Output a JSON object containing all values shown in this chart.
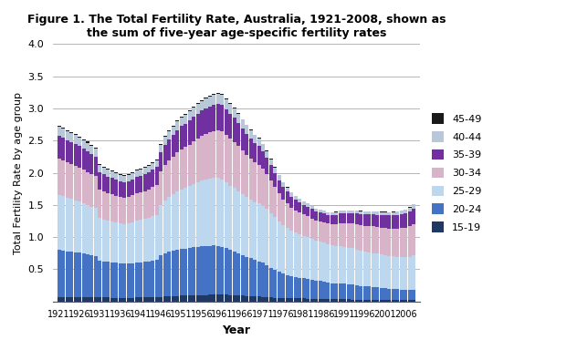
{
  "title": "Figure 1. The Total Fertility Rate, Australia, 1921-2008, shown as\nthe sum of five-year age-specific fertility rates",
  "xlabel": "Year",
  "ylabel": "Total Fertility Rate by age group",
  "years": [
    1921,
    1922,
    1923,
    1924,
    1925,
    1926,
    1927,
    1928,
    1929,
    1930,
    1931,
    1932,
    1933,
    1934,
    1935,
    1936,
    1937,
    1938,
    1939,
    1940,
    1941,
    1942,
    1943,
    1944,
    1945,
    1946,
    1947,
    1948,
    1949,
    1950,
    1951,
    1952,
    1953,
    1954,
    1955,
    1956,
    1957,
    1958,
    1959,
    1960,
    1961,
    1962,
    1963,
    1964,
    1965,
    1966,
    1967,
    1968,
    1969,
    1970,
    1971,
    1972,
    1973,
    1974,
    1975,
    1976,
    1977,
    1978,
    1979,
    1980,
    1981,
    1982,
    1983,
    1984,
    1985,
    1986,
    1987,
    1988,
    1989,
    1990,
    1991,
    1992,
    1993,
    1994,
    1995,
    1996,
    1997,
    1998,
    1999,
    2000,
    2001,
    2002,
    2003,
    2004,
    2005,
    2006,
    2007,
    2008
  ],
  "age_groups": [
    "15-19",
    "20-24",
    "25-29",
    "30-34",
    "35-39",
    "40-44",
    "45-49"
  ],
  "colors": [
    "#1f3864",
    "#4472c4",
    "#bdd7ee",
    "#d8b4c8",
    "#7030a0",
    "#b8c8d8",
    "#1a1a1a"
  ],
  "data": {
    "15-19": [
      0.073,
      0.073,
      0.072,
      0.071,
      0.07,
      0.069,
      0.068,
      0.067,
      0.066,
      0.065,
      0.062,
      0.061,
      0.06,
      0.059,
      0.058,
      0.057,
      0.057,
      0.057,
      0.058,
      0.06,
      0.062,
      0.063,
      0.064,
      0.066,
      0.067,
      0.073,
      0.078,
      0.082,
      0.085,
      0.088,
      0.09,
      0.093,
      0.095,
      0.097,
      0.099,
      0.101,
      0.102,
      0.104,
      0.106,
      0.108,
      0.106,
      0.103,
      0.099,
      0.096,
      0.093,
      0.09,
      0.087,
      0.083,
      0.079,
      0.075,
      0.071,
      0.066,
      0.062,
      0.059,
      0.057,
      0.055,
      0.053,
      0.051,
      0.049,
      0.047,
      0.046,
      0.044,
      0.042,
      0.04,
      0.038,
      0.036,
      0.034,
      0.033,
      0.033,
      0.033,
      0.033,
      0.032,
      0.031,
      0.03,
      0.029,
      0.028,
      0.027,
      0.026,
      0.025,
      0.024,
      0.023,
      0.022,
      0.022,
      0.021,
      0.02,
      0.019,
      0.019,
      0.019
    ],
    "20-24": [
      0.73,
      0.72,
      0.71,
      0.705,
      0.695,
      0.685,
      0.675,
      0.665,
      0.655,
      0.645,
      0.57,
      0.56,
      0.553,
      0.547,
      0.542,
      0.535,
      0.53,
      0.535,
      0.54,
      0.548,
      0.55,
      0.555,
      0.562,
      0.568,
      0.578,
      0.65,
      0.675,
      0.688,
      0.7,
      0.715,
      0.725,
      0.73,
      0.735,
      0.742,
      0.748,
      0.755,
      0.758,
      0.76,
      0.762,
      0.758,
      0.745,
      0.722,
      0.7,
      0.678,
      0.655,
      0.632,
      0.61,
      0.588,
      0.565,
      0.55,
      0.528,
      0.496,
      0.463,
      0.431,
      0.403,
      0.377,
      0.36,
      0.344,
      0.333,
      0.322,
      0.312,
      0.307,
      0.296,
      0.285,
      0.279,
      0.273,
      0.263,
      0.253,
      0.248,
      0.248,
      0.243,
      0.238,
      0.233,
      0.223,
      0.213,
      0.207,
      0.203,
      0.198,
      0.193,
      0.188,
      0.183,
      0.178,
      0.173,
      0.168,
      0.163,
      0.158,
      0.158,
      0.163
    ],
    "25-29": [
      0.85,
      0.84,
      0.828,
      0.82,
      0.808,
      0.798,
      0.785,
      0.77,
      0.755,
      0.74,
      0.665,
      0.655,
      0.643,
      0.635,
      0.628,
      0.62,
      0.618,
      0.625,
      0.635,
      0.648,
      0.655,
      0.663,
      0.675,
      0.688,
      0.7,
      0.778,
      0.82,
      0.85,
      0.878,
      0.905,
      0.928,
      0.942,
      0.958,
      0.978,
      0.998,
      1.018,
      1.03,
      1.042,
      1.048,
      1.055,
      1.045,
      1.022,
      1.0,
      0.988,
      0.968,
      0.945,
      0.922,
      0.91,
      0.898,
      0.895,
      0.89,
      0.875,
      0.852,
      0.818,
      0.785,
      0.75,
      0.728,
      0.705,
      0.688,
      0.675,
      0.663,
      0.65,
      0.638,
      0.625,
      0.618,
      0.608,
      0.595,
      0.583,
      0.582,
      0.582,
      0.575,
      0.568,
      0.562,
      0.555,
      0.548,
      0.542,
      0.535,
      0.528,
      0.522,
      0.515,
      0.51,
      0.505,
      0.505,
      0.505,
      0.505,
      0.51,
      0.518,
      0.53
    ],
    "30-34": [
      0.56,
      0.555,
      0.548,
      0.542,
      0.535,
      0.528,
      0.52,
      0.512,
      0.505,
      0.495,
      0.44,
      0.433,
      0.425,
      0.42,
      0.415,
      0.408,
      0.405,
      0.408,
      0.415,
      0.423,
      0.428,
      0.435,
      0.443,
      0.455,
      0.468,
      0.515,
      0.545,
      0.565,
      0.585,
      0.605,
      0.622,
      0.635,
      0.65,
      0.668,
      0.682,
      0.695,
      0.708,
      0.722,
      0.735,
      0.742,
      0.748,
      0.74,
      0.728,
      0.715,
      0.698,
      0.678,
      0.66,
      0.64,
      0.622,
      0.605,
      0.575,
      0.54,
      0.505,
      0.468,
      0.435,
      0.405,
      0.382,
      0.36,
      0.345,
      0.335,
      0.328,
      0.322,
      0.315,
      0.308,
      0.308,
      0.312,
      0.318,
      0.33,
      0.342,
      0.355,
      0.368,
      0.375,
      0.382,
      0.39,
      0.395,
      0.4,
      0.408,
      0.413,
      0.418,
      0.423,
      0.428,
      0.43,
      0.435,
      0.442,
      0.45,
      0.462,
      0.475,
      0.492
    ],
    "35-39": [
      0.355,
      0.352,
      0.348,
      0.343,
      0.338,
      0.333,
      0.328,
      0.322,
      0.315,
      0.308,
      0.272,
      0.267,
      0.262,
      0.257,
      0.252,
      0.248,
      0.245,
      0.245,
      0.248,
      0.252,
      0.255,
      0.258,
      0.262,
      0.268,
      0.275,
      0.298,
      0.315,
      0.328,
      0.338,
      0.348,
      0.358,
      0.365,
      0.372,
      0.38,
      0.388,
      0.395,
      0.4,
      0.405,
      0.41,
      0.412,
      0.408,
      0.398,
      0.388,
      0.375,
      0.36,
      0.345,
      0.33,
      0.315,
      0.302,
      0.29,
      0.272,
      0.255,
      0.238,
      0.22,
      0.205,
      0.192,
      0.182,
      0.172,
      0.163,
      0.157,
      0.152,
      0.147,
      0.143,
      0.14,
      0.138,
      0.137,
      0.137,
      0.14,
      0.143,
      0.148,
      0.152,
      0.157,
      0.162,
      0.167,
      0.172,
      0.177,
      0.181,
      0.185,
      0.189,
      0.193,
      0.197,
      0.201,
      0.205,
      0.21,
      0.215,
      0.222,
      0.23,
      0.24
    ],
    "40-44": [
      0.145,
      0.143,
      0.141,
      0.139,
      0.137,
      0.135,
      0.132,
      0.13,
      0.127,
      0.124,
      0.11,
      0.108,
      0.106,
      0.104,
      0.102,
      0.1,
      0.099,
      0.099,
      0.1,
      0.102,
      0.103,
      0.104,
      0.105,
      0.107,
      0.109,
      0.118,
      0.123,
      0.127,
      0.131,
      0.135,
      0.138,
      0.14,
      0.142,
      0.145,
      0.148,
      0.15,
      0.152,
      0.154,
      0.155,
      0.156,
      0.155,
      0.152,
      0.148,
      0.143,
      0.138,
      0.132,
      0.128,
      0.122,
      0.118,
      0.113,
      0.107,
      0.1,
      0.092,
      0.084,
      0.077,
      0.071,
      0.066,
      0.061,
      0.058,
      0.055,
      0.052,
      0.049,
      0.047,
      0.044,
      0.042,
      0.041,
      0.04,
      0.04,
      0.04,
      0.041,
      0.041,
      0.042,
      0.043,
      0.044,
      0.045,
      0.046,
      0.047,
      0.047,
      0.048,
      0.048,
      0.049,
      0.05,
      0.051,
      0.052,
      0.054,
      0.056,
      0.059,
      0.062
    ],
    "45-49": [
      0.018,
      0.018,
      0.017,
      0.017,
      0.017,
      0.016,
      0.016,
      0.016,
      0.015,
      0.015,
      0.013,
      0.013,
      0.013,
      0.012,
      0.012,
      0.012,
      0.012,
      0.012,
      0.012,
      0.012,
      0.012,
      0.012,
      0.012,
      0.012,
      0.012,
      0.013,
      0.013,
      0.013,
      0.014,
      0.014,
      0.014,
      0.015,
      0.015,
      0.015,
      0.015,
      0.015,
      0.015,
      0.015,
      0.015,
      0.015,
      0.015,
      0.014,
      0.014,
      0.013,
      0.013,
      0.012,
      0.012,
      0.011,
      0.011,
      0.011,
      0.01,
      0.009,
      0.009,
      0.008,
      0.007,
      0.007,
      0.006,
      0.006,
      0.005,
      0.005,
      0.005,
      0.004,
      0.004,
      0.004,
      0.004,
      0.004,
      0.004,
      0.004,
      0.004,
      0.004,
      0.004,
      0.004,
      0.004,
      0.004,
      0.004,
      0.004,
      0.004,
      0.004,
      0.004,
      0.004,
      0.004,
      0.004,
      0.004,
      0.004,
      0.004,
      0.004,
      0.004,
      0.004
    ]
  },
  "ylim": [
    0,
    4.0
  ],
  "yticks": [
    0,
    0.5,
    1.0,
    1.5,
    2.0,
    2.5,
    3.0,
    3.5,
    4.0
  ]
}
